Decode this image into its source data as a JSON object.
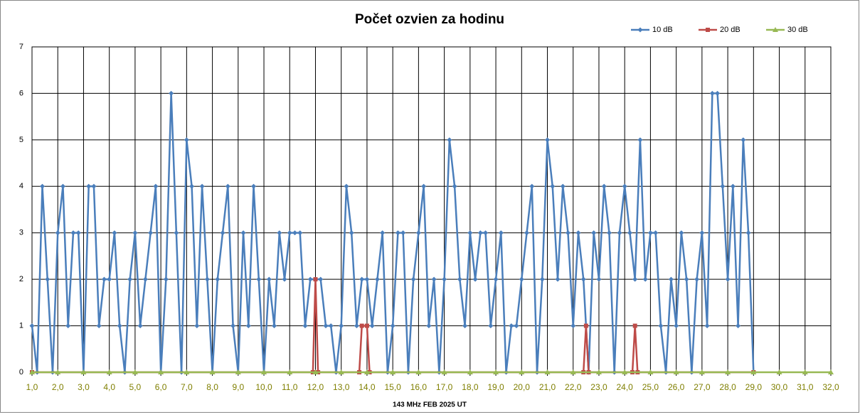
{
  "chart_data": {
    "type": "line",
    "title": "Počet ozvien za hodinu",
    "xlabel": "143 MHz FEB  2025  UT",
    "xlim": [
      1,
      32
    ],
    "ylim": [
      0,
      7
    ],
    "yticks": [
      0,
      1,
      2,
      3,
      4,
      5,
      6,
      7
    ],
    "xticks": [
      {
        "value": 1,
        "label": "1,0"
      },
      {
        "value": 2,
        "label": "2,0"
      },
      {
        "value": 3,
        "label": "3,0"
      },
      {
        "value": 4,
        "label": "4,0"
      },
      {
        "value": 5,
        "label": "5,0"
      },
      {
        "value": 6,
        "label": "6,0"
      },
      {
        "value": 7,
        "label": "7,0"
      },
      {
        "value": 8,
        "label": "8,0"
      },
      {
        "value": 9,
        "label": "9,0"
      },
      {
        "value": 10,
        "label": "10,0"
      },
      {
        "value": 11,
        "label": "11,0"
      },
      {
        "value": 12,
        "label": "12,0"
      },
      {
        "value": 13,
        "label": "13,0"
      },
      {
        "value": 14,
        "label": "14,0"
      },
      {
        "value": 15,
        "label": "15,0"
      },
      {
        "value": 16,
        "label": "16,0"
      },
      {
        "value": 17,
        "label": "17,0"
      },
      {
        "value": 18,
        "label": "18,0"
      },
      {
        "value": 19,
        "label": "19,0"
      },
      {
        "value": 20,
        "label": "20,0"
      },
      {
        "value": 21,
        "label": "21,0"
      },
      {
        "value": 22,
        "label": "22,0"
      },
      {
        "value": 23,
        "label": "23,0"
      },
      {
        "value": 24,
        "label": "24,0"
      },
      {
        "value": 25,
        "label": "25,0"
      },
      {
        "value": 26,
        "label": "26,0"
      },
      {
        "value": 27,
        "label": "27,0"
      },
      {
        "value": 28,
        "label": "28,0"
      },
      {
        "value": 29,
        "label": "29,0"
      },
      {
        "value": 30,
        "label": "30,0"
      },
      {
        "value": 31,
        "label": "31,0"
      },
      {
        "value": 32,
        "label": "32,0"
      }
    ],
    "grid": true,
    "legend": "top-right",
    "series": [
      {
        "name": "10 dB",
        "color": "#4a7ebb",
        "marker": "diamond",
        "x": [
          1.0,
          1.2,
          1.4,
          1.6,
          1.8,
          2.0,
          2.2,
          2.4,
          2.6,
          2.8,
          3.0,
          3.2,
          3.4,
          3.6,
          3.8,
          4.0,
          4.2,
          4.4,
          4.6,
          4.8,
          5.0,
          5.2,
          5.4,
          5.6,
          5.8,
          6.0,
          6.2,
          6.4,
          6.6,
          6.8,
          7.0,
          7.2,
          7.4,
          7.6,
          7.8,
          8.0,
          8.2,
          8.4,
          8.6,
          8.8,
          9.0,
          9.2,
          9.4,
          9.6,
          9.8,
          10.0,
          10.2,
          10.4,
          10.6,
          10.8,
          11.0,
          11.2,
          11.4,
          11.6,
          11.8,
          12.0,
          12.2,
          12.4,
          12.6,
          12.8,
          13.0,
          13.2,
          13.4,
          13.6,
          13.8,
          14.0,
          14.2,
          14.4,
          14.6,
          14.8,
          15.0,
          15.2,
          15.4,
          15.6,
          15.8,
          16.0,
          16.2,
          16.4,
          16.6,
          16.8,
          17.0,
          17.2,
          17.4,
          17.6,
          17.8,
          18.0,
          18.2,
          18.4,
          18.6,
          18.8,
          19.0,
          19.2,
          19.4,
          19.6,
          19.8,
          20.0,
          20.2,
          20.4,
          20.6,
          20.8,
          21.0,
          21.2,
          21.4,
          21.6,
          21.8,
          22.0,
          22.2,
          22.4,
          22.6,
          22.8,
          23.0,
          23.2,
          23.4,
          23.6,
          23.8,
          24.0,
          24.2,
          24.4,
          24.6,
          24.8,
          25.0,
          25.2,
          25.4,
          25.6,
          25.8,
          26.0,
          26.2,
          26.4,
          26.6,
          26.8,
          27.0,
          27.2,
          27.4,
          27.6,
          27.8,
          28.0,
          28.2,
          28.4,
          28.6,
          28.8,
          29.0
        ],
        "values": [
          1,
          0,
          4,
          2,
          0,
          3,
          4,
          1,
          3,
          3,
          0,
          4,
          4,
          1,
          2,
          2,
          3,
          1,
          0,
          2,
          3,
          1,
          2,
          3,
          4,
          0,
          2,
          6,
          3,
          0,
          5,
          4,
          1,
          4,
          2,
          0,
          2,
          3,
          4,
          1,
          0,
          3,
          1,
          4,
          2,
          0,
          2,
          1,
          3,
          2,
          3,
          3,
          3,
          1,
          2,
          2,
          2,
          1,
          1,
          0,
          1,
          4,
          3,
          1,
          2,
          2,
          1,
          2,
          3,
          0,
          1,
          3,
          3,
          0,
          2,
          3,
          4,
          1,
          2,
          0,
          2,
          5,
          4,
          2,
          1,
          3,
          2,
          3,
          3,
          1,
          2,
          3,
          0,
          1,
          1,
          2,
          3,
          4,
          0,
          2,
          5,
          4,
          2,
          4,
          3,
          1,
          3,
          2,
          0,
          3,
          2,
          4,
          3,
          0,
          3,
          4,
          3,
          2,
          5,
          2,
          3,
          3,
          1,
          0,
          2,
          1,
          3,
          2,
          0,
          2,
          3,
          1,
          6,
          6,
          4,
          2,
          4,
          1,
          5,
          3,
          0
        ]
      },
      {
        "name": "20 dB",
        "color": "#be4b48",
        "marker": "square",
        "x": [
          1.0,
          11.9,
          12.0,
          12.1,
          13.7,
          13.8,
          14.0,
          14.1,
          22.4,
          22.5,
          22.6,
          24.3,
          24.4,
          24.5,
          29.0
        ],
        "values": [
          0,
          0,
          2,
          0,
          0,
          1,
          1,
          0,
          0,
          1,
          0,
          0,
          1,
          0,
          0
        ]
      },
      {
        "name": "30 dB",
        "color": "#98b954",
        "marker": "triangle",
        "x": [
          1,
          2,
          3,
          4,
          5,
          6,
          7,
          8,
          9,
          10,
          11,
          12,
          13,
          14,
          15,
          16,
          17,
          18,
          19,
          20,
          21,
          22,
          23,
          24,
          25,
          26,
          27,
          28,
          29,
          30,
          31,
          32
        ],
        "values": [
          0,
          0,
          0,
          0,
          0,
          0,
          0,
          0,
          0,
          0,
          0,
          0,
          0,
          0,
          0,
          0,
          0,
          0,
          0,
          0,
          0,
          0,
          0,
          0,
          0,
          0,
          0,
          0,
          0,
          0,
          0,
          0
        ]
      }
    ]
  }
}
